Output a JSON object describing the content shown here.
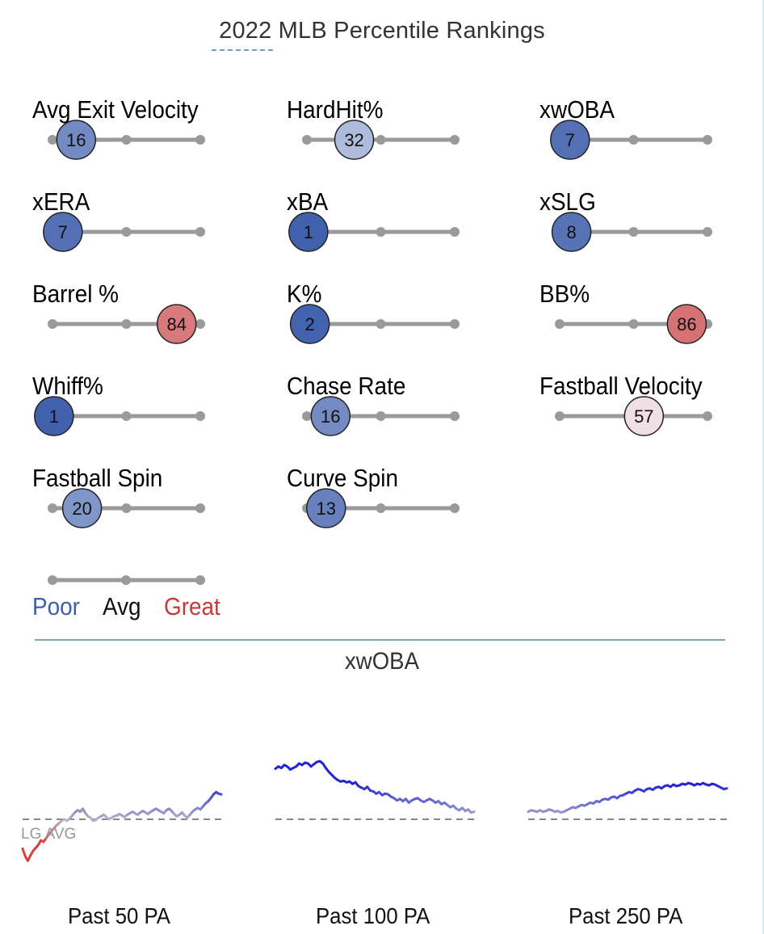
{
  "title": "2022 MLB Percentile Rankings",
  "colors": {
    "poor": "#3f5fac",
    "avg": "#111111",
    "great": "#c93939",
    "track": "#9a9a9a",
    "divider": "#7aa7b0",
    "spark_blue": "#2424d6",
    "spark_red": "#d84040",
    "lg_avg_line": "#888888"
  },
  "metrics": [
    {
      "label": "Avg Exit Velocity",
      "percentile": 16
    },
    {
      "label": "HardHit%",
      "percentile": 32
    },
    {
      "label": "xwOBA",
      "percentile": 7
    },
    {
      "label": "xERA",
      "percentile": 7
    },
    {
      "label": "xBA",
      "percentile": 1
    },
    {
      "label": "xSLG",
      "percentile": 8
    },
    {
      "label": "Barrel %",
      "percentile": 84
    },
    {
      "label": "K%",
      "percentile": 2
    },
    {
      "label": "BB%",
      "percentile": 86
    },
    {
      "label": "Whiff%",
      "percentile": 1
    },
    {
      "label": "Chase Rate",
      "percentile": 16
    },
    {
      "label": "Fastball Velocity",
      "percentile": 57
    },
    {
      "label": "Fastball Spin",
      "percentile": 20
    },
    {
      "label": "Curve Spin",
      "percentile": 13
    }
  ],
  "legend": {
    "poor": "Poor",
    "avg": "Avg",
    "great": "Great"
  },
  "chart_data": {
    "type": "line",
    "title": "xwOBA",
    "baseline_label": "LG AVG",
    "series": [
      {
        "name": "Past 50 PA",
        "values": [
          0.61,
          0.51,
          0.45,
          0.52,
          0.58,
          0.62,
          0.66,
          0.72,
          0.7,
          0.75,
          0.8,
          0.84,
          0.88,
          0.92,
          0.95,
          0.98,
          1.0,
          0.98,
          1.01,
          1.05,
          1.09,
          1.12,
          1.1,
          1.14,
          1.08,
          1.04,
          1.02,
          0.98,
          0.99,
          1.02,
          1.04,
          1.06,
          1.03,
          1.0,
          1.02,
          1.04,
          1.05,
          1.07,
          1.05,
          1.03,
          1.06,
          1.08,
          1.1,
          1.08,
          1.06,
          1.09,
          1.11,
          1.09,
          1.07,
          1.1,
          1.12,
          1.14,
          1.12,
          1.1,
          1.08,
          1.12,
          1.14,
          1.11,
          1.07,
          1.04,
          1.06,
          1.09,
          1.05,
          1.02,
          1.06,
          1.1,
          1.13,
          1.15,
          1.13,
          1.17,
          1.21,
          1.24,
          1.28,
          1.33,
          1.36,
          1.34,
          1.33
        ]
      },
      {
        "name": "Past 100 PA",
        "values": [
          1.67,
          1.7,
          1.68,
          1.72,
          1.7,
          1.66,
          1.68,
          1.7,
          1.74,
          1.72,
          1.75,
          1.74,
          1.7,
          1.73,
          1.76,
          1.77,
          1.74,
          1.68,
          1.63,
          1.59,
          1.55,
          1.52,
          1.5,
          1.51,
          1.49,
          1.5,
          1.47,
          1.49,
          1.44,
          1.42,
          1.4,
          1.43,
          1.38,
          1.37,
          1.34,
          1.36,
          1.32,
          1.34,
          1.33,
          1.3,
          1.28,
          1.25,
          1.27,
          1.24,
          1.27,
          1.22,
          1.25,
          1.27,
          1.28,
          1.25,
          1.23,
          1.25,
          1.27,
          1.25,
          1.22,
          1.24,
          1.2,
          1.22,
          1.19,
          1.16,
          1.18,
          1.14,
          1.12,
          1.15,
          1.11,
          1.13,
          1.09,
          1.1
        ]
      },
      {
        "name": "Past 250 PA",
        "values": [
          1.1,
          1.12,
          1.11,
          1.1,
          1.12,
          1.1,
          1.11,
          1.13,
          1.12,
          1.1,
          1.11,
          1.09,
          1.1,
          1.12,
          1.14,
          1.16,
          1.15,
          1.17,
          1.19,
          1.18,
          1.2,
          1.22,
          1.21,
          1.24,
          1.23,
          1.26,
          1.27,
          1.26,
          1.29,
          1.3,
          1.28,
          1.31,
          1.32,
          1.34,
          1.36,
          1.35,
          1.38,
          1.4,
          1.39,
          1.37,
          1.4,
          1.41,
          1.39,
          1.42,
          1.43,
          1.41,
          1.44,
          1.45,
          1.43,
          1.46,
          1.44,
          1.45,
          1.47,
          1.46,
          1.48,
          1.47,
          1.45,
          1.47,
          1.46,
          1.48,
          1.46,
          1.45,
          1.47,
          1.46,
          1.44,
          1.42,
          1.4,
          1.41
        ]
      }
    ],
    "baseline": 1.0
  }
}
